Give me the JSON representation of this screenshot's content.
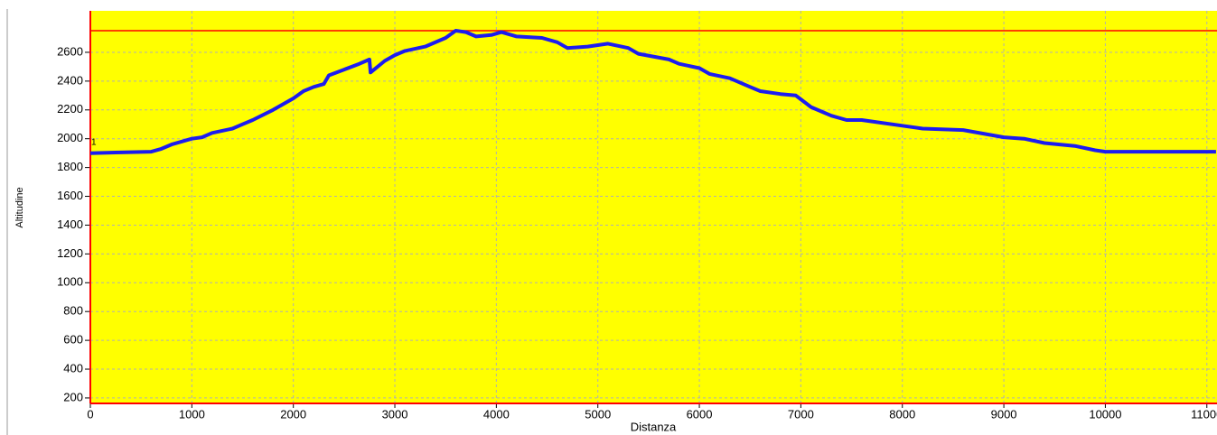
{
  "chart_data": {
    "type": "line",
    "x_label": "Distanza",
    "y_label": "Altitudine",
    "annotation": "1",
    "x": [
      0,
      300,
      600,
      700,
      800,
      1000,
      1100,
      1200,
      1400,
      1500,
      1600,
      1800,
      2000,
      2100,
      2200,
      2300,
      2350,
      2500,
      2650,
      2750,
      2760,
      2900,
      3000,
      3100,
      3300,
      3500,
      3600,
      3700,
      3800,
      3950,
      4050,
      4200,
      4450,
      4600,
      4700,
      4900,
      5100,
      5300,
      5400,
      5700,
      5800,
      6000,
      6100,
      6300,
      6500,
      6600,
      6800,
      6950,
      7100,
      7300,
      7450,
      7600,
      8000,
      8200,
      8600,
      9000,
      9200,
      9400,
      9700,
      9900,
      10000,
      11090
    ],
    "values": [
      1900,
      1905,
      1910,
      1930,
      1960,
      2000,
      2010,
      2040,
      2070,
      2100,
      2130,
      2200,
      2280,
      2330,
      2360,
      2380,
      2440,
      2480,
      2520,
      2550,
      2460,
      2540,
      2580,
      2610,
      2640,
      2700,
      2750,
      2740,
      2710,
      2720,
      2740,
      2710,
      2700,
      2670,
      2630,
      2640,
      2660,
      2630,
      2590,
      2550,
      2520,
      2490,
      2450,
      2420,
      2360,
      2330,
      2310,
      2300,
      2220,
      2160,
      2130,
      2130,
      2090,
      2070,
      2060,
      2010,
      2000,
      1970,
      1950,
      1920,
      1910,
      1910
    ],
    "color": "#1c1cf0",
    "background": "#ffff00",
    "axis_color": "#ff0000",
    "reference_line": 2750,
    "xlim": [
      0,
      11100
    ],
    "xticks": [
      0,
      1000,
      2000,
      3000,
      4000,
      5000,
      6000,
      7000,
      8000,
      9000,
      10000,
      11000
    ],
    "ylim": [
      162,
      2888
    ],
    "yticks": [
      200,
      400,
      600,
      800,
      1000,
      1200,
      1400,
      1600,
      1800,
      2000,
      2200,
      2400,
      2600
    ],
    "grid": true
  }
}
